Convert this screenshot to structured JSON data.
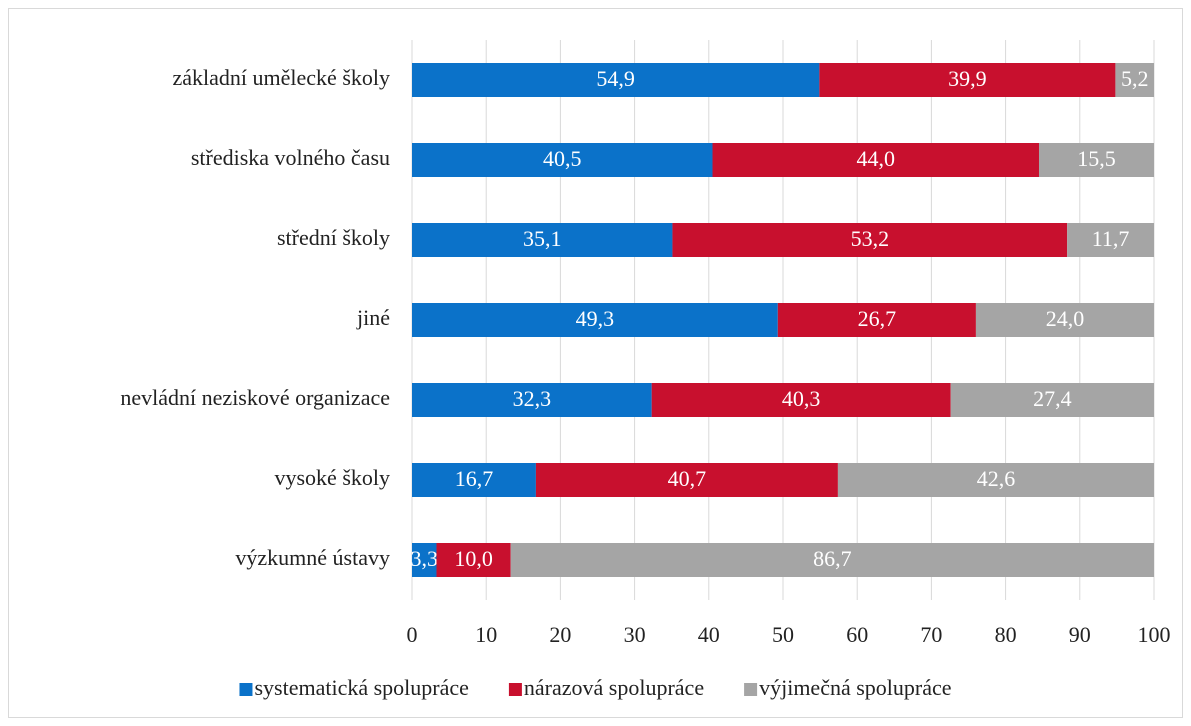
{
  "chart_data": {
    "type": "stacked-bar-horizontal",
    "categories": [
      "základní umělecké školy",
      "střediska volného času",
      "střední školy",
      "jiné",
      "nevládní neziskové organizace",
      "vysoké školy",
      "výzkumné ústavy"
    ],
    "series": [
      {
        "name": "systematická spolupráce",
        "color": "#0b72c9",
        "values": [
          54.9,
          40.5,
          35.1,
          49.3,
          32.3,
          16.7,
          3.3
        ],
        "value_labels": [
          "54,9",
          "40,5",
          "35,1",
          "49,3",
          "32,3",
          "16,7",
          "3,3"
        ]
      },
      {
        "name": "nárazová spolupráce",
        "color": "#c8102e",
        "values": [
          39.9,
          44.0,
          53.2,
          26.7,
          40.3,
          40.7,
          10.0
        ],
        "value_labels": [
          "39,9",
          "44,0",
          "53,2",
          "26,7",
          "40,3",
          "40,7",
          "10,0"
        ]
      },
      {
        "name": "výjimečná spolupráce",
        "color": "#a5a5a5",
        "values": [
          5.2,
          15.5,
          11.7,
          24.0,
          27.4,
          42.6,
          86.7
        ],
        "value_labels": [
          "5,2",
          "15,5",
          "11,7",
          "24,0",
          "27,4",
          "42,6",
          "86,7"
        ]
      }
    ],
    "xlim": [
      0,
      100
    ],
    "xticks": [
      0,
      10,
      20,
      30,
      40,
      50,
      60,
      70,
      80,
      90,
      100
    ],
    "grid": true,
    "legend": "bottom"
  }
}
